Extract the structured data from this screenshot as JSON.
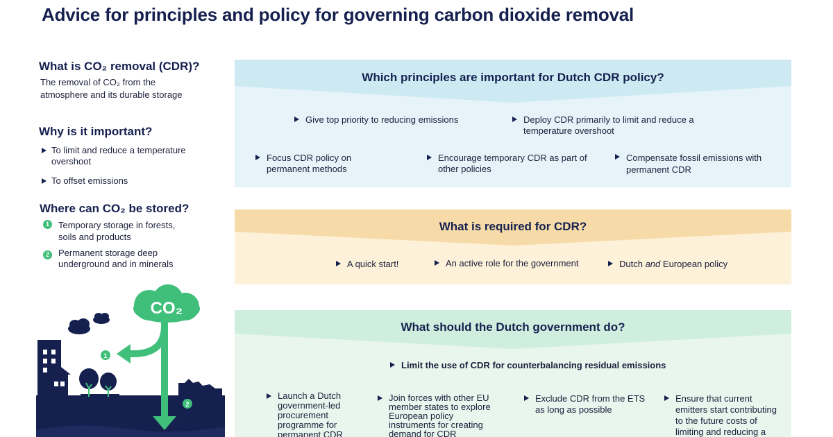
{
  "title": "Advice for principles and policy for governing carbon dioxide removal",
  "left": {
    "what_heading": "What is CO₂ removal (CDR)?",
    "what_text": "The removal of CO₂ from the atmosphere and its durable storage",
    "why_heading": "Why is it important?",
    "why_items": [
      "To limit and reduce a temperature overshoot",
      "To offset emissions"
    ],
    "where_heading": "Where can CO₂ be stored?",
    "where_items": [
      {
        "num": "1",
        "text": "Temporary storage in forests, soils and products"
      },
      {
        "num": "2",
        "text": "Permanent storage deep underground and in minerals"
      }
    ]
  },
  "illustration": {
    "cloud_label": "CO₂",
    "marker_1": "1",
    "marker_2": "2"
  },
  "principles": {
    "heading": "Which principles are important for  Dutch CDR policy?",
    "items": [
      "Give top priority to reducing emissions",
      "Deploy CDR  primarily to limit and reduce a temperature overshoot",
      "Focus CDR policy on permanent methods",
      "Encourage temporary CDR as part of other policies",
      "Compensate fossil emissions with permanent CDR"
    ]
  },
  "required": {
    "heading": "What is required for CDR?",
    "items": [
      "A quick start!",
      "An active role for the government"
    ],
    "item3_pre": "Dutch ",
    "item3_em": "and",
    "item3_post": " European policy"
  },
  "government": {
    "heading": "What should the Dutch government do?",
    "main_item": "Limit the use of CDR for counterbalancing residual emissions",
    "items": [
      "Launch a Dutch government-led procurement programme for permanent CDR",
      "Join forces with other EU member states to explore European policy instruments for creating demand for CDR",
      "Exclude CDR from the ETS as long as possible",
      "Ensure that current emitters start contributing to the future costs of limiting and reducing a"
    ]
  },
  "colors": {
    "navy": "#15204f",
    "blue_band": "#cdeaf3",
    "blue_body": "#e6f4f9",
    "orange_band": "#f6dba8",
    "orange_body": "#fdf1d9",
    "green_band": "#cfeedd",
    "green_body": "#e8f6ee",
    "green_accent": "#3fbf7a"
  }
}
